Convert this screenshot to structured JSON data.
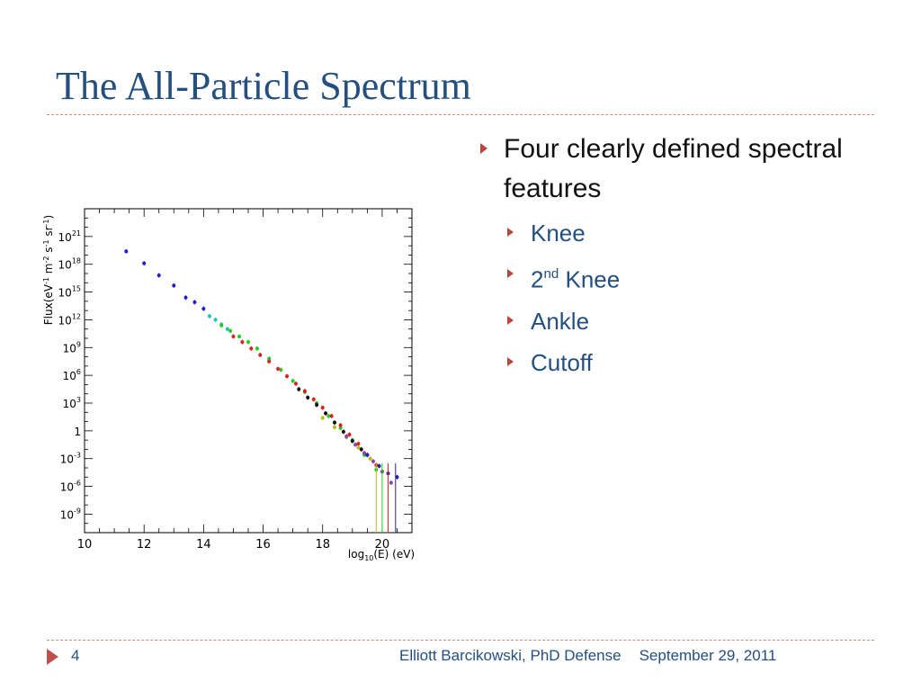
{
  "slide": {
    "title": "The All-Particle Spectrum",
    "bullets": [
      {
        "text": "Four clearly defined spectral features"
      }
    ],
    "sub_bullets": [
      {
        "text": "Knee"
      },
      {
        "base": "2",
        "sup": "nd",
        "rest": " Knee"
      },
      {
        "text": "Ankle"
      },
      {
        "text": "Cutoff"
      }
    ],
    "colors": {
      "title": "#24507f",
      "bullet_arrow": "#b6473c",
      "rule": "#d9877a"
    }
  },
  "footer": {
    "page_number": "4",
    "author": "Elliott Barcikowski, PhD Defense",
    "date": "September 29, 2011"
  },
  "chart_data": {
    "type": "scatter",
    "title": "",
    "xlabel": "log10(E) (eV)",
    "ylabel": "Flux(eV-1 m-2 s-1 sr-1)",
    "xlim": [
      10,
      21
    ],
    "ylim": [
      -11,
      24
    ],
    "y_scale": "log10",
    "grid": false,
    "legend": "none",
    "x_ticks": [
      "10",
      "12",
      "14",
      "16",
      "18",
      "20"
    ],
    "y_ticks": [
      "10^21",
      "10^18",
      "10^15",
      "10^12",
      "10^9",
      "10^6",
      "10^3",
      "1",
      "10^-3",
      "10^-6",
      "10^-9"
    ],
    "series": [
      {
        "color": "#1f1fd0",
        "x": [
          11.4,
          12.0,
          12.5,
          13.0,
          13.4,
          13.7,
          14.0
        ],
        "y": [
          19.4,
          18.1,
          16.8,
          15.7,
          14.4,
          13.9,
          13.2
        ]
      },
      {
        "color": "#22c3c3",
        "x": [
          14.2,
          14.4,
          14.6,
          14.8
        ],
        "y": [
          12.4,
          12.0,
          11.5,
          11.0
        ]
      },
      {
        "color": "#22cc22",
        "x": [
          14.6,
          14.9,
          15.2,
          15.5,
          15.8,
          16.2,
          16.6,
          17.0,
          17.4,
          17.8,
          18.2,
          18.6,
          19.0,
          19.4,
          19.8
        ],
        "y": [
          11.4,
          10.8,
          10.2,
          9.6,
          8.9,
          7.8,
          6.6,
          5.4,
          4.2,
          3.0,
          1.6,
          0.3,
          -1.0,
          -2.6,
          -4.2
        ]
      },
      {
        "color": "#dd1f1f",
        "x": [
          15.0,
          15.3,
          15.6,
          15.9,
          16.2,
          16.5,
          16.8,
          17.1,
          17.4,
          17.7,
          18.0,
          18.3,
          18.6,
          18.9,
          19.2,
          19.5,
          19.8
        ],
        "y": [
          10.2,
          9.6,
          8.9,
          8.2,
          7.5,
          6.7,
          5.9,
          5.1,
          4.3,
          3.4,
          2.5,
          1.6,
          0.6,
          -0.4,
          -1.4,
          -2.6,
          -3.7
        ]
      },
      {
        "color": "#111111",
        "x": [
          17.2,
          17.5,
          17.8,
          18.1,
          18.4,
          18.7,
          19.0,
          19.3
        ],
        "y": [
          4.5,
          3.6,
          2.8,
          1.9,
          0.9,
          -0.1,
          -1.1,
          -2.0
        ]
      },
      {
        "color": "#b8b81a",
        "x": [
          18.0,
          18.4,
          18.8,
          19.2,
          19.6,
          20.0
        ],
        "y": [
          1.4,
          0.4,
          -0.7,
          -1.8,
          -3.0,
          -4.4
        ]
      },
      {
        "color": "#8844aa",
        "x": [
          18.8,
          19.1,
          19.4,
          19.7,
          20.0,
          20.3
        ],
        "y": [
          -0.6,
          -1.5,
          -2.4,
          -3.3,
          -4.4,
          -5.6
        ]
      },
      {
        "color": "#2222aa",
        "x": [
          19.5,
          19.9,
          20.2,
          20.5
        ],
        "y": [
          -2.6,
          -3.8,
          -4.6,
          -5.0
        ]
      }
    ]
  }
}
